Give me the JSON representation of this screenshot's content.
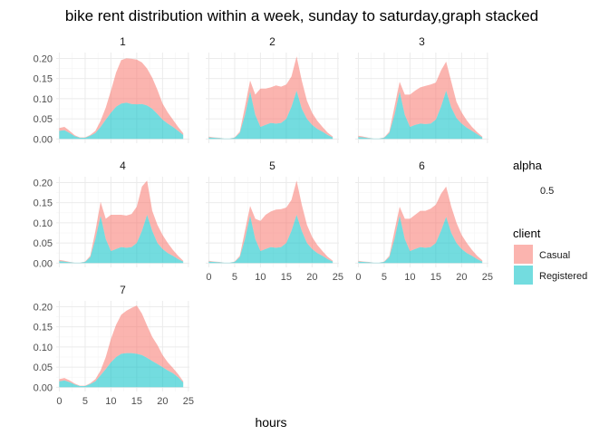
{
  "chart_data": {
    "type": "area",
    "stacked": true,
    "title": "bike rent distribution within a week, sunday to saturday,graph stacked",
    "xlabel": "hours",
    "ylabel": "",
    "xlim": [
      0,
      24
    ],
    "ylim": [
      0,
      0.21
    ],
    "x_ticks": [
      0,
      5,
      10,
      15,
      20,
      25
    ],
    "y_ticks": [
      0.0,
      0.05,
      0.1,
      0.15,
      0.2
    ],
    "x_tick_labels": [
      "0",
      "5",
      "10",
      "15",
      "20",
      "25"
    ],
    "y_tick_labels": [
      "0.00",
      "0.05",
      "0.10",
      "0.15",
      "0.20"
    ],
    "grid": true,
    "legend_position": "right",
    "legend": {
      "alpha_title": "alpha",
      "alpha_value": "0.5",
      "client_title": "client",
      "items": [
        {
          "name": "Casual",
          "color": "#F8766D"
        },
        {
          "name": "Registered",
          "color": "#00BFC4"
        }
      ]
    },
    "facets": [
      {
        "label": "1",
        "x": [
          0,
          1,
          2,
          3,
          4,
          5,
          6,
          7,
          8,
          9,
          10,
          11,
          12,
          13,
          14,
          15,
          16,
          17,
          18,
          19,
          20,
          21,
          22,
          23,
          24
        ],
        "series": [
          {
            "name": "Registered",
            "values": [
              0.02,
              0.022,
              0.015,
              0.007,
              0.003,
              0.003,
              0.008,
              0.015,
              0.03,
              0.048,
              0.065,
              0.08,
              0.088,
              0.09,
              0.087,
              0.086,
              0.087,
              0.083,
              0.075,
              0.062,
              0.048,
              0.038,
              0.03,
              0.02,
              0.01
            ]
          },
          {
            "name": "Casual",
            "values": [
              0.007,
              0.008,
              0.005,
              0.002,
              0.001,
              0.001,
              0.002,
              0.005,
              0.015,
              0.03,
              0.055,
              0.085,
              0.108,
              0.11,
              0.112,
              0.111,
              0.103,
              0.092,
              0.077,
              0.06,
              0.04,
              0.028,
              0.018,
              0.01,
              0.004
            ]
          }
        ]
      },
      {
        "label": "2",
        "x": [
          0,
          1,
          2,
          3,
          4,
          5,
          6,
          7,
          8,
          9,
          10,
          11,
          12,
          13,
          14,
          15,
          16,
          17,
          18,
          19,
          20,
          21,
          22,
          23,
          24
        ],
        "series": [
          {
            "name": "Registered",
            "values": [
              0.004,
              0.003,
              0.002,
              0.001,
              0.001,
              0.003,
              0.015,
              0.06,
              0.118,
              0.06,
              0.03,
              0.035,
              0.04,
              0.038,
              0.04,
              0.05,
              0.08,
              0.12,
              0.075,
              0.05,
              0.035,
              0.025,
              0.018,
              0.01,
              0.004
            ]
          },
          {
            "name": "Casual",
            "values": [
              0.002,
              0.001,
              0.001,
              0.0,
              0.0,
              0.001,
              0.003,
              0.02,
              0.027,
              0.05,
              0.095,
              0.09,
              0.088,
              0.095,
              0.09,
              0.085,
              0.075,
              0.085,
              0.07,
              0.045,
              0.03,
              0.02,
              0.012,
              0.006,
              0.002
            ]
          }
        ]
      },
      {
        "label": "3",
        "x": [
          0,
          1,
          2,
          3,
          4,
          5,
          6,
          7,
          8,
          9,
          10,
          11,
          12,
          13,
          14,
          15,
          16,
          17,
          18,
          19,
          20,
          21,
          22,
          23,
          24
        ],
        "series": [
          {
            "name": "Registered",
            "values": [
              0.005,
              0.004,
              0.002,
              0.001,
              0.001,
              0.003,
              0.015,
              0.06,
              0.118,
              0.06,
              0.03,
              0.035,
              0.038,
              0.037,
              0.038,
              0.048,
              0.08,
              0.12,
              0.078,
              0.052,
              0.038,
              0.028,
              0.02,
              0.012,
              0.004
            ]
          },
          {
            "name": "Casual",
            "values": [
              0.003,
              0.002,
              0.001,
              0.0,
              0.0,
              0.001,
              0.003,
              0.02,
              0.024,
              0.05,
              0.08,
              0.085,
              0.09,
              0.095,
              0.097,
              0.092,
              0.09,
              0.072,
              0.064,
              0.04,
              0.028,
              0.018,
              0.01,
              0.005,
              0.002
            ]
          }
        ]
      },
      {
        "label": "4",
        "x": [
          0,
          1,
          2,
          3,
          4,
          5,
          6,
          7,
          8,
          9,
          10,
          11,
          12,
          13,
          14,
          15,
          16,
          17,
          18,
          19,
          20,
          21,
          22,
          23,
          24
        ],
        "series": [
          {
            "name": "Registered",
            "values": [
              0.005,
              0.004,
              0.002,
              0.001,
              0.001,
              0.003,
              0.015,
              0.06,
              0.118,
              0.06,
              0.03,
              0.035,
              0.04,
              0.038,
              0.04,
              0.05,
              0.08,
              0.12,
              0.08,
              0.05,
              0.035,
              0.025,
              0.018,
              0.01,
              0.004
            ]
          },
          {
            "name": "Casual",
            "values": [
              0.003,
              0.002,
              0.001,
              0.0,
              0.0,
              0.001,
              0.003,
              0.02,
              0.034,
              0.05,
              0.09,
              0.085,
              0.08,
              0.08,
              0.082,
              0.09,
              0.11,
              0.085,
              0.05,
              0.045,
              0.035,
              0.025,
              0.015,
              0.008,
              0.002
            ]
          }
        ]
      },
      {
        "label": "5",
        "x": [
          0,
          1,
          2,
          3,
          4,
          5,
          6,
          7,
          8,
          9,
          10,
          11,
          12,
          13,
          14,
          15,
          16,
          17,
          18,
          19,
          20,
          21,
          22,
          23,
          24
        ],
        "series": [
          {
            "name": "Registered",
            "values": [
              0.004,
              0.003,
              0.002,
              0.001,
              0.001,
              0.003,
              0.015,
              0.06,
              0.118,
              0.06,
              0.03,
              0.035,
              0.04,
              0.038,
              0.04,
              0.05,
              0.08,
              0.12,
              0.08,
              0.05,
              0.035,
              0.025,
              0.018,
              0.01,
              0.004
            ]
          },
          {
            "name": "Casual",
            "values": [
              0.002,
              0.001,
              0.001,
              0.0,
              0.0,
              0.001,
              0.003,
              0.02,
              0.024,
              0.05,
              0.075,
              0.085,
              0.088,
              0.095,
              0.094,
              0.088,
              0.077,
              0.085,
              0.065,
              0.045,
              0.03,
              0.02,
              0.012,
              0.006,
              0.002
            ]
          }
        ]
      },
      {
        "label": "6",
        "x": [
          0,
          1,
          2,
          3,
          4,
          5,
          6,
          7,
          8,
          9,
          10,
          11,
          12,
          13,
          14,
          15,
          16,
          17,
          18,
          19,
          20,
          21,
          22,
          23,
          24
        ],
        "series": [
          {
            "name": "Registered",
            "values": [
              0.004,
              0.003,
              0.002,
              0.001,
              0.001,
              0.003,
              0.015,
              0.06,
              0.118,
              0.06,
              0.03,
              0.035,
              0.04,
              0.038,
              0.04,
              0.05,
              0.08,
              0.115,
              0.075,
              0.05,
              0.035,
              0.025,
              0.018,
              0.01,
              0.004
            ]
          },
          {
            "name": "Casual",
            "values": [
              0.002,
              0.001,
              0.001,
              0.0,
              0.0,
              0.001,
              0.003,
              0.02,
              0.022,
              0.05,
              0.08,
              0.085,
              0.09,
              0.092,
              0.095,
              0.095,
              0.092,
              0.075,
              0.065,
              0.05,
              0.035,
              0.025,
              0.015,
              0.008,
              0.003
            ]
          }
        ]
      },
      {
        "label": "7",
        "x": [
          0,
          1,
          2,
          3,
          4,
          5,
          6,
          7,
          8,
          9,
          10,
          11,
          12,
          13,
          14,
          15,
          16,
          17,
          18,
          19,
          20,
          21,
          22,
          23,
          24
        ],
        "series": [
          {
            "name": "Registered",
            "values": [
              0.015,
              0.017,
              0.013,
              0.007,
              0.003,
              0.003,
              0.008,
              0.015,
              0.03,
              0.045,
              0.062,
              0.075,
              0.083,
              0.085,
              0.085,
              0.083,
              0.08,
              0.073,
              0.065,
              0.058,
              0.05,
              0.042,
              0.035,
              0.025,
              0.012
            ]
          },
          {
            "name": "Casual",
            "values": [
              0.005,
              0.006,
              0.004,
              0.002,
              0.001,
              0.001,
              0.002,
              0.005,
              0.012,
              0.03,
              0.058,
              0.08,
              0.097,
              0.105,
              0.112,
              0.12,
              0.103,
              0.08,
              0.06,
              0.047,
              0.03,
              0.02,
              0.013,
              0.008,
              0.003
            ]
          }
        ]
      }
    ]
  }
}
